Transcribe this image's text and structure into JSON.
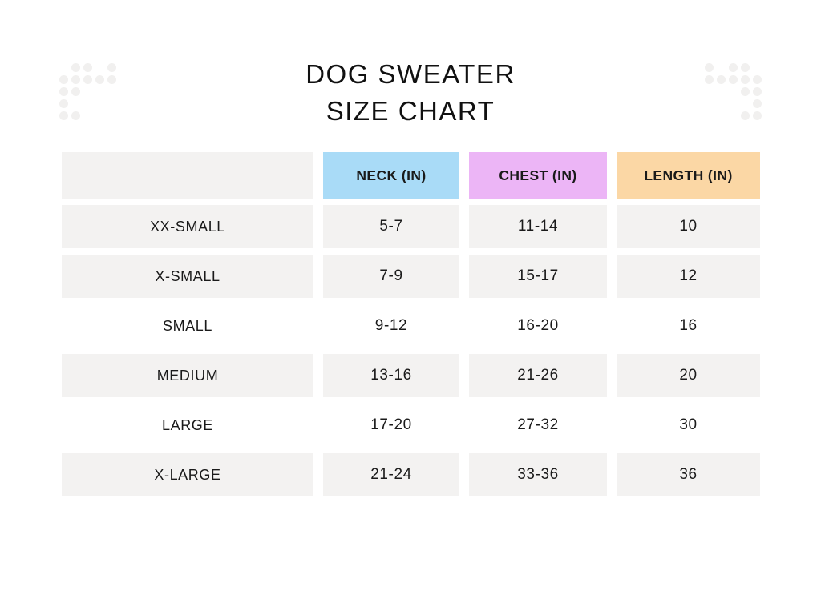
{
  "title": {
    "line1": "DOG SWEATER",
    "line2": "SIZE CHART"
  },
  "decor": {
    "dot_color": "#f1f0ef",
    "left_pattern": [
      "01101",
      "11111",
      "11000",
      "10000",
      "11000"
    ],
    "right_pattern": [
      "10110",
      "11111",
      "00011",
      "00001",
      "00011"
    ]
  },
  "chart_data": {
    "type": "table",
    "title": "DOG SWEATER SIZE CHART",
    "columns": [
      {
        "label": "",
        "header_color": "#f3f2f1"
      },
      {
        "label": "NECK (IN)",
        "header_color": "#a9dbf7"
      },
      {
        "label": "CHEST (IN)",
        "header_color": "#ecb5f6"
      },
      {
        "label": "LENGTH (IN)",
        "header_color": "#fbd7a5"
      }
    ],
    "shaded_row_color": "#f3f2f1",
    "unshaded_row_color": "#ffffff",
    "rows": [
      {
        "cells": [
          "XX-SMALL",
          "5-7",
          "11-14",
          "10"
        ],
        "shaded": true
      },
      {
        "cells": [
          "X-SMALL",
          "7-9",
          "15-17",
          "12"
        ],
        "shaded": true
      },
      {
        "cells": [
          "SMALL",
          "9-12",
          "16-20",
          "16"
        ],
        "shaded": false
      },
      {
        "cells": [
          "MEDIUM",
          "13-16",
          "21-26",
          "20"
        ],
        "shaded": true
      },
      {
        "cells": [
          "LARGE",
          "17-20",
          "27-32",
          "30"
        ],
        "shaded": false
      },
      {
        "cells": [
          "X-LARGE",
          "21-24",
          "33-36",
          "36"
        ],
        "shaded": true
      }
    ]
  }
}
